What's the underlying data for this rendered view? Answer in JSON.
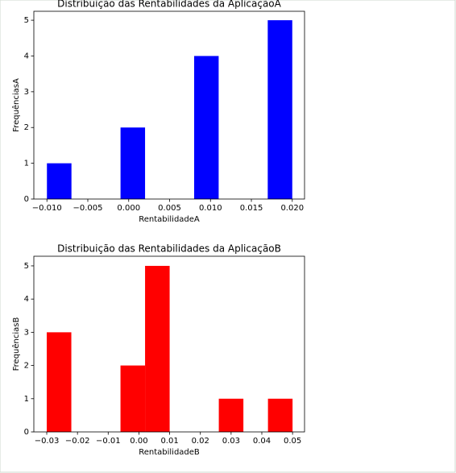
{
  "chart_data": [
    {
      "type": "histogram",
      "title": "Distribuição das Rentabilidades da AplicaçãoA",
      "xlabel": "RentabilidadeA",
      "ylabel": "FrequênciasA",
      "color": "#0000ff",
      "bins": [
        -0.01,
        -0.007,
        -0.004,
        -0.001,
        0.002,
        0.005,
        0.008,
        0.011,
        0.014,
        0.017,
        0.02
      ],
      "values": [
        1,
        0,
        0,
        2,
        0,
        0,
        4,
        0,
        0,
        5
      ],
      "xlim": [
        -0.0116,
        0.0215
      ],
      "ylim": [
        0,
        5.25
      ],
      "xticks": [
        {
          "value": -0.01,
          "label": "−0.010"
        },
        {
          "value": -0.005,
          "label": "−0.005"
        },
        {
          "value": 0,
          "label": "0.000"
        },
        {
          "value": 0.005,
          "label": "0.005"
        },
        {
          "value": 0.01,
          "label": "0.010"
        },
        {
          "value": 0.015,
          "label": "0.015"
        },
        {
          "value": 0.02,
          "label": "0.020"
        }
      ],
      "yticks": [
        0,
        1,
        2,
        3,
        4,
        5
      ]
    },
    {
      "type": "histogram",
      "title": "Distribuição das Rentabilidades da AplicaçãoB",
      "xlabel": "RentabilidadeB",
      "ylabel": "FrequênciasB",
      "color": "#ff0000",
      "bins": [
        -0.03,
        -0.022,
        -0.014,
        -0.006,
        0.002,
        0.01,
        0.018,
        0.026,
        0.034,
        0.042,
        0.05
      ],
      "values": [
        3,
        0,
        0,
        2,
        5,
        0,
        0,
        1,
        0,
        1
      ],
      "xlim": [
        -0.0342,
        0.0539
      ],
      "ylim": [
        0,
        5.29
      ],
      "xticks": [
        {
          "value": -0.03,
          "label": "−0.03"
        },
        {
          "value": -0.02,
          "label": "−0.02"
        },
        {
          "value": -0.01,
          "label": "−0.01"
        },
        {
          "value": 0,
          "label": "0.00"
        },
        {
          "value": 0.01,
          "label": "0.01"
        },
        {
          "value": 0.02,
          "label": "0.02"
        },
        {
          "value": 0.03,
          "label": "0.03"
        },
        {
          "value": 0.04,
          "label": "0.04"
        },
        {
          "value": 0.05,
          "label": "0.05"
        }
      ],
      "yticks": [
        0,
        1,
        2,
        3,
        4,
        5
      ]
    }
  ]
}
